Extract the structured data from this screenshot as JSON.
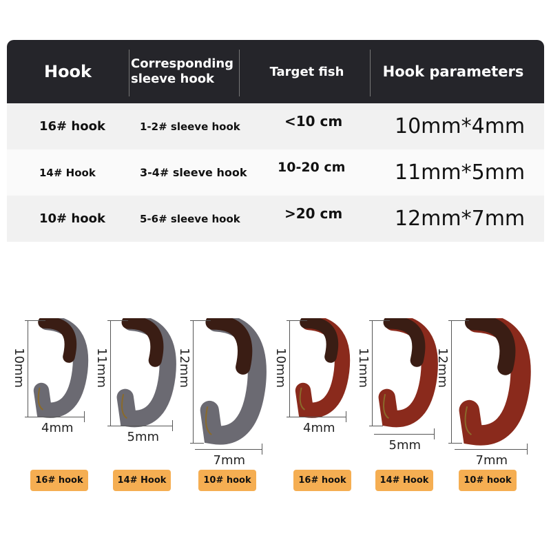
{
  "table": {
    "headers": [
      "Hook",
      "Corresponding sleeve hook",
      "Target fish",
      "Hook parameters"
    ],
    "rows": [
      {
        "hook": "16# hook",
        "sleeve": "1-2# sleeve hook",
        "fish": "<10 cm",
        "params": "10mm*4mm"
      },
      {
        "hook": "14# Hook",
        "sleeve": "3-4# sleeve hook",
        "fish": "10-20 cm",
        "params": "11mm*5mm"
      },
      {
        "hook": "10# hook",
        "sleeve": "5-6# sleeve hook",
        "fish": ">20 cm",
        "params": "12mm*7mm"
      }
    ]
  },
  "figures": [
    {
      "length": "10mm",
      "width": "4mm",
      "badge": "16# hook",
      "color": "#6b6a72"
    },
    {
      "length": "11mm",
      "width": "5mm",
      "badge": "14# Hook",
      "color": "#6b6a72"
    },
    {
      "length": "12mm",
      "width": "7mm",
      "badge": "10# hook",
      "color": "#6b6a72"
    },
    {
      "length": "10mm",
      "width": "4mm",
      "badge": "16# hook",
      "color": "#8a2a1c"
    },
    {
      "length": "11mm",
      "width": "5mm",
      "badge": "14# Hook",
      "color": "#8a2a1c"
    },
    {
      "length": "12mm",
      "width": "7mm",
      "badge": "10# hook",
      "color": "#8a2a1c"
    }
  ],
  "colors": {
    "header_bg": "#25252a",
    "badge": "#f5ae52"
  }
}
